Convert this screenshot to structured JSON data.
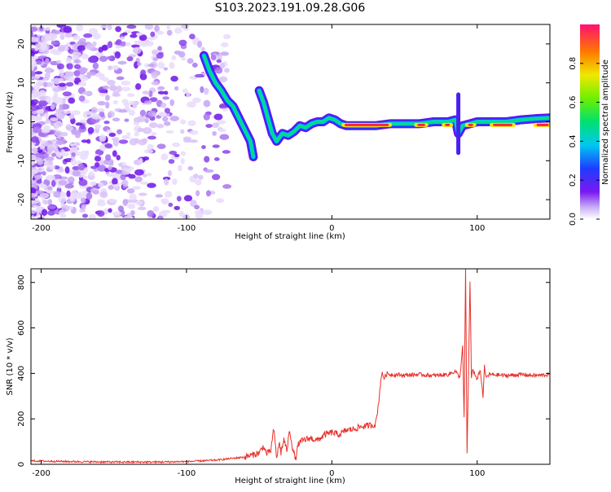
{
  "chart_data": [
    {
      "type": "heatmap",
      "title": "S103.2023.191.09.28.G06",
      "xlabel": "Height of straight line (km)",
      "ylabel": "Frequency (Hz)",
      "xlim": [
        -207,
        150
      ],
      "ylim": [
        -25,
        25
      ],
      "x_ticks": [
        "-200",
        "-100",
        "0",
        "100"
      ],
      "y_ticks": [
        "-20",
        "-10",
        "0",
        "10",
        "20"
      ],
      "colorbar": {
        "label": "Normalized spectral amplitude",
        "range": [
          0,
          1
        ],
        "ticks": [
          "0.0",
          "0.2",
          "0.4",
          "0.6",
          "0.8"
        ]
      },
      "ridge": {
        "x": [
          -88,
          -84,
          -80,
          -76,
          -72,
          -68,
          -64,
          -60,
          -56,
          -54,
          -50,
          -47,
          -44,
          -41,
          -38,
          -34,
          -30,
          -26,
          -22,
          -18,
          -14,
          -10,
          -6,
          -2,
          2,
          6,
          10,
          20,
          30,
          40,
          50,
          60,
          70,
          80,
          85,
          87,
          90,
          95,
          100,
          110,
          120,
          130,
          140,
          150
        ],
        "y": [
          17,
          13,
          10,
          8,
          5.5,
          4,
          1,
          -2,
          -5,
          -9,
          8,
          5,
          1,
          -3,
          -5,
          -3,
          -3.5,
          -2.5,
          -1,
          -1.5,
          -0.5,
          0,
          0,
          1,
          0.5,
          -0.5,
          -1,
          -1,
          -1,
          -0.5,
          -0.5,
          -0.5,
          0,
          0,
          0.5,
          -3,
          -1,
          -0.5,
          0,
          0,
          0,
          0.5,
          0.8,
          1
        ]
      }
    },
    {
      "type": "line",
      "xlabel": "Height of straight line (km)",
      "ylabel": "SNR (10 * v/v)",
      "xlim": [
        -207,
        150
      ],
      "ylim": [
        0,
        860
      ],
      "x_ticks": [
        "-200",
        "-100",
        "0",
        "100"
      ],
      "y_ticks": [
        "0",
        "200",
        "400",
        "600",
        "800"
      ],
      "color": "#e8302a",
      "x": [
        -207,
        -180,
        -150,
        -120,
        -100,
        -80,
        -70,
        -60,
        -55,
        -50,
        -47,
        -45,
        -42,
        -40,
        -38,
        -36,
        -35,
        -33,
        -31,
        -29,
        -27,
        -25,
        -23,
        -20,
        -15,
        -10,
        -5,
        0,
        5,
        10,
        15,
        20,
        25,
        30,
        32,
        34,
        35,
        36,
        38,
        40,
        50,
        60,
        70,
        80,
        85,
        88,
        90,
        91,
        92,
        93,
        94,
        95,
        96,
        97,
        98,
        100,
        102,
        104,
        105,
        106,
        108,
        110,
        120,
        130,
        140,
        150
      ],
      "y": [
        15,
        12,
        10,
        10,
        12,
        18,
        25,
        32,
        40,
        50,
        80,
        45,
        60,
        155,
        30,
        95,
        50,
        110,
        60,
        150,
        70,
        20,
        90,
        105,
        115,
        105,
        130,
        140,
        130,
        150,
        155,
        165,
        170,
        175,
        260,
        390,
        395,
        380,
        400,
        395,
        392,
        395,
        390,
        395,
        410,
        380,
        520,
        200,
        860,
        40,
        400,
        810,
        380,
        420,
        400,
        370,
        420,
        300,
        430,
        380,
        395,
        395,
        390,
        395,
        390,
        395
      ]
    }
  ]
}
